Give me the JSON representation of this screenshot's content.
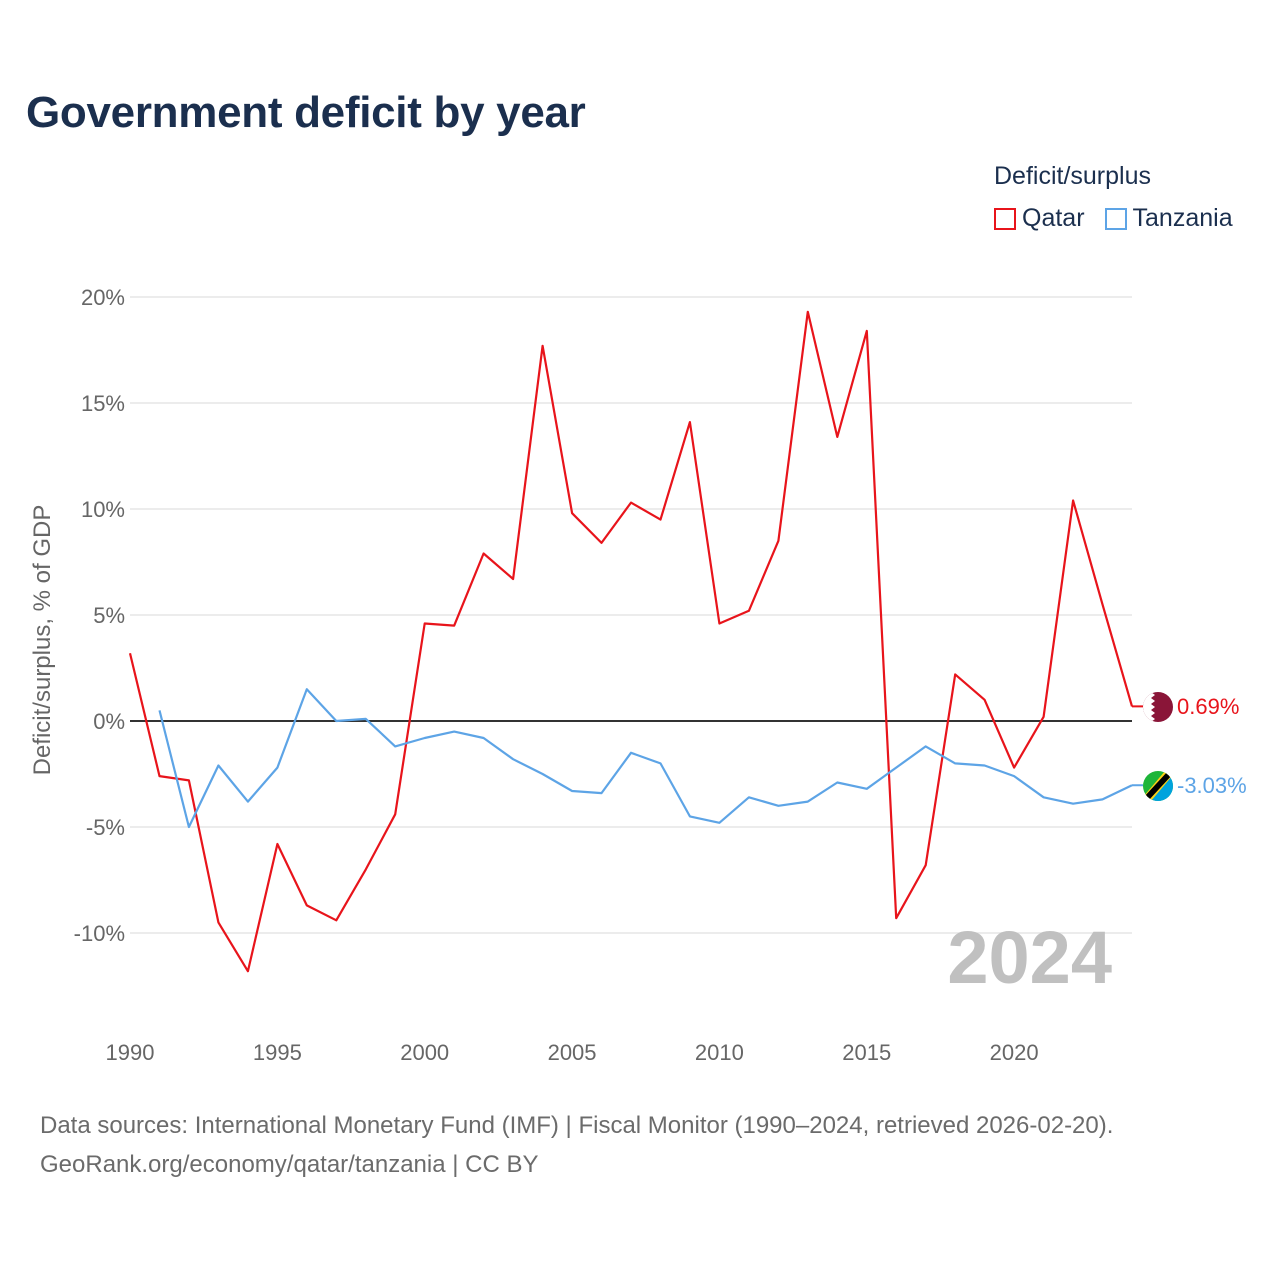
{
  "title": "Government deficit by year",
  "legend": {
    "title": "Deficit/surplus",
    "items": [
      {
        "label": "Qatar",
        "color": "#e8141b"
      },
      {
        "label": "Tanzania",
        "color": "#5da4e6"
      }
    ]
  },
  "year_watermark": "2024",
  "source_line1": "Data sources: International Monetary Fund (IMF) | Fiscal Monitor (1990–2024, retrieved 2026-02-20).",
  "source_line2": "GeoRank.org/economy/qatar/tanzania | CC BY",
  "chart_data": {
    "type": "line",
    "title": "Government deficit by year",
    "ylabel": "Deficit/surplus, % of GDP",
    "xlabel": "",
    "xlim": [
      1990,
      2024
    ],
    "ylim": [
      -14,
      21
    ],
    "x_ticks": [
      1990,
      1995,
      2000,
      2005,
      2010,
      2015,
      2020
    ],
    "x_tick_labels": [
      "1990",
      "1995",
      "2000",
      "2005",
      "2010",
      "2015",
      "2020"
    ],
    "y_ticks": [
      -10,
      -5,
      0,
      5,
      10,
      15,
      20
    ],
    "y_tick_labels": [
      "-10%",
      "-5%",
      "0%",
      "5%",
      "10%",
      "15%",
      "20%"
    ],
    "series": [
      {
        "name": "Qatar",
        "color": "#e8141b",
        "end_label": "0.69%",
        "flag_icon": "qatar-flag-icon",
        "x": [
          1990,
          1991,
          1992,
          1993,
          1994,
          1995,
          1996,
          1997,
          1998,
          1999,
          2000,
          2001,
          2002,
          2003,
          2004,
          2005,
          2006,
          2007,
          2008,
          2009,
          2010,
          2011,
          2012,
          2013,
          2014,
          2015,
          2016,
          2017,
          2018,
          2019,
          2020,
          2021,
          2022,
          2023,
          2024
        ],
        "values": [
          3.2,
          -2.6,
          -2.8,
          -9.5,
          -11.8,
          -5.8,
          -8.7,
          -9.4,
          -7.0,
          -4.4,
          4.6,
          4.5,
          7.9,
          6.7,
          17.7,
          9.8,
          8.4,
          10.3,
          9.5,
          14.1,
          4.6,
          5.2,
          8.5,
          19.3,
          13.4,
          18.4,
          -9.3,
          -6.8,
          2.2,
          1.0,
          -2.2,
          0.2,
          10.4,
          5.5,
          0.69
        ]
      },
      {
        "name": "Tanzania",
        "color": "#5da4e6",
        "end_label": "-3.03%",
        "flag_icon": "tanzania-flag-icon",
        "x": [
          1991,
          1992,
          1993,
          1994,
          1995,
          1996,
          1997,
          1998,
          1999,
          2000,
          2001,
          2002,
          2003,
          2004,
          2005,
          2006,
          2007,
          2008,
          2009,
          2010,
          2011,
          2012,
          2013,
          2014,
          2015,
          2016,
          2017,
          2018,
          2019,
          2020,
          2021,
          2022,
          2023,
          2024
        ],
        "values": [
          0.5,
          -5.0,
          -2.1,
          -3.8,
          -2.2,
          1.5,
          0.0,
          0.1,
          -1.2,
          -0.8,
          -0.5,
          -0.8,
          -1.8,
          -2.5,
          -3.3,
          -3.4,
          -1.5,
          -2.0,
          -4.5,
          -4.8,
          -3.6,
          -4.0,
          -3.8,
          -2.9,
          -3.2,
          -2.2,
          -1.2,
          -2.0,
          -2.1,
          -2.6,
          -3.6,
          -3.9,
          -3.7,
          -3.03
        ]
      }
    ]
  }
}
